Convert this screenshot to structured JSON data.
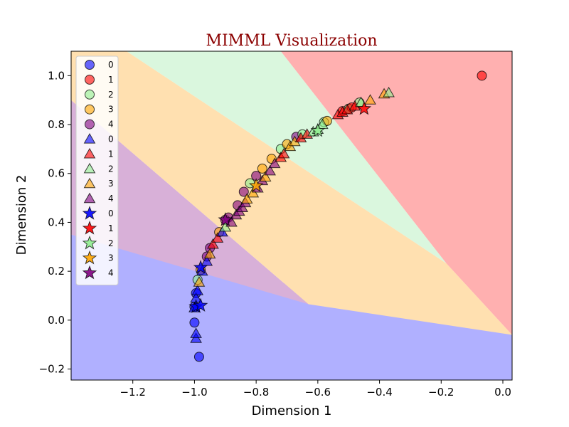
{
  "chart_data": {
    "type": "scatter",
    "title": "MIMML Visualization",
    "xlabel": "Dimension 1",
    "ylabel": "Dimension 2",
    "xlim": [
      -1.4,
      0.03
    ],
    "ylim": [
      -0.245,
      1.1
    ],
    "x_ticks": [
      "-1.2",
      "-1.0",
      "-0.8",
      "-0.6",
      "-0.4",
      "-0.2",
      "0.0"
    ],
    "y_ticks": [
      "-0.2",
      "0.0",
      "0.2",
      "0.4",
      "0.6",
      "0.8",
      "1.0"
    ],
    "grid": false,
    "legend_position": "top-left",
    "class_colors": {
      "0": "#0000ff",
      "1": "#ff0000",
      "2": "#90ee90",
      "3": "#ffa500",
      "4": "#800080"
    },
    "region_colors": {
      "0": "#b0b0ff",
      "1": "#ffb0b0",
      "2": "#daf7de",
      "3": "#ffe0b0",
      "4": "#d8b0d8"
    },
    "decision_regions": [
      {
        "class": "0",
        "polygon": [
          [
            -1.4,
            -0.245
          ],
          [
            0.03,
            -0.245
          ],
          [
            0.03,
            -0.06
          ],
          [
            -1.4,
            0.35
          ]
        ]
      },
      {
        "class": "4",
        "polygon": [
          [
            -1.4,
            0.35
          ],
          [
            -0.63,
            0.065
          ],
          [
            -1.4,
            0.9
          ]
        ]
      },
      {
        "class": "3",
        "polygon": [
          [
            -1.4,
            0.9
          ],
          [
            -1.4,
            1.1
          ],
          [
            -1.22,
            1.1
          ],
          [
            -0.183,
            0.232
          ],
          [
            0.03,
            -0.06
          ],
          [
            -0.63,
            0.065
          ]
        ]
      },
      {
        "class": "2",
        "polygon": [
          [
            -1.22,
            1.1
          ],
          [
            -0.72,
            1.1
          ],
          [
            -0.183,
            0.232
          ]
        ]
      },
      {
        "class": "1",
        "polygon": [
          [
            -0.72,
            1.1
          ],
          [
            0.03,
            1.1
          ],
          [
            0.03,
            -0.06
          ],
          [
            -0.183,
            0.232
          ]
        ]
      }
    ],
    "legend": [
      {
        "label": "0",
        "marker": "circle",
        "class": "0"
      },
      {
        "label": "1",
        "marker": "circle",
        "class": "1"
      },
      {
        "label": "2",
        "marker": "circle",
        "class": "2"
      },
      {
        "label": "3",
        "marker": "circle",
        "class": "3"
      },
      {
        "label": "4",
        "marker": "circle",
        "class": "4"
      },
      {
        "label": "0",
        "marker": "triangle",
        "class": "0"
      },
      {
        "label": "1",
        "marker": "triangle",
        "class": "1"
      },
      {
        "label": "2",
        "marker": "triangle",
        "class": "2"
      },
      {
        "label": "3",
        "marker": "triangle",
        "class": "3"
      },
      {
        "label": "4",
        "marker": "triangle",
        "class": "4"
      },
      {
        "label": "0",
        "marker": "star",
        "class": "0"
      },
      {
        "label": "1",
        "marker": "star",
        "class": "1"
      },
      {
        "label": "2",
        "marker": "star",
        "class": "2"
      },
      {
        "label": "3",
        "marker": "star",
        "class": "3"
      },
      {
        "label": "4",
        "marker": "star",
        "class": "4"
      }
    ],
    "series": [
      {
        "marker": "circle",
        "points": [
          {
            "x": -0.985,
            "y": -0.15,
            "c": "0"
          },
          {
            "x": -1.0,
            "y": -0.01,
            "c": "0"
          },
          {
            "x": -1.0,
            "y": 0.055,
            "c": "0"
          },
          {
            "x": -0.995,
            "y": 0.11,
            "c": "0"
          },
          {
            "x": -0.99,
            "y": 0.165,
            "c": "2"
          },
          {
            "x": -0.98,
            "y": 0.205,
            "c": "3"
          },
          {
            "x": -0.96,
            "y": 0.26,
            "c": "4"
          },
          {
            "x": -0.95,
            "y": 0.295,
            "c": "4"
          },
          {
            "x": -0.92,
            "y": 0.36,
            "c": "3"
          },
          {
            "x": -0.9,
            "y": 0.41,
            "c": "4"
          },
          {
            "x": -0.89,
            "y": 0.42,
            "c": "4"
          },
          {
            "x": -0.86,
            "y": 0.47,
            "c": "4"
          },
          {
            "x": -0.84,
            "y": 0.525,
            "c": "4"
          },
          {
            "x": -0.82,
            "y": 0.56,
            "c": "2"
          },
          {
            "x": -0.8,
            "y": 0.59,
            "c": "4"
          },
          {
            "x": -0.78,
            "y": 0.62,
            "c": "3"
          },
          {
            "x": -0.75,
            "y": 0.66,
            "c": "3"
          },
          {
            "x": -0.72,
            "y": 0.7,
            "c": "2"
          },
          {
            "x": -0.7,
            "y": 0.72,
            "c": "3"
          },
          {
            "x": -0.67,
            "y": 0.75,
            "c": "4"
          },
          {
            "x": -0.65,
            "y": 0.76,
            "c": "2"
          },
          {
            "x": -0.58,
            "y": 0.81,
            "c": "2"
          },
          {
            "x": -0.57,
            "y": 0.815,
            "c": "3"
          },
          {
            "x": -0.52,
            "y": 0.855,
            "c": "1"
          },
          {
            "x": -0.5,
            "y": 0.865,
            "c": "2"
          },
          {
            "x": -0.49,
            "y": 0.87,
            "c": "1"
          },
          {
            "x": -0.465,
            "y": 0.89,
            "c": "2"
          },
          {
            "x": -0.068,
            "y": 1.0,
            "c": "1"
          }
        ]
      },
      {
        "marker": "triangle",
        "points": [
          {
            "x": -0.995,
            "y": -0.075,
            "c": "0"
          },
          {
            "x": -0.995,
            "y": -0.055,
            "c": "0"
          },
          {
            "x": -1.0,
            "y": 0.05,
            "c": "0"
          },
          {
            "x": -0.995,
            "y": 0.09,
            "c": "0"
          },
          {
            "x": -0.99,
            "y": 0.12,
            "c": "0"
          },
          {
            "x": -0.985,
            "y": 0.155,
            "c": "3"
          },
          {
            "x": -0.975,
            "y": 0.2,
            "c": "0"
          },
          {
            "x": -0.96,
            "y": 0.24,
            "c": "0"
          },
          {
            "x": -0.95,
            "y": 0.27,
            "c": "3"
          },
          {
            "x": -0.94,
            "y": 0.31,
            "c": "1"
          },
          {
            "x": -0.925,
            "y": 0.335,
            "c": "1"
          },
          {
            "x": -0.91,
            "y": 0.36,
            "c": "0"
          },
          {
            "x": -0.9,
            "y": 0.38,
            "c": "2"
          },
          {
            "x": -0.88,
            "y": 0.4,
            "c": "4"
          },
          {
            "x": -0.865,
            "y": 0.43,
            "c": "4"
          },
          {
            "x": -0.855,
            "y": 0.445,
            "c": "4"
          },
          {
            "x": -0.845,
            "y": 0.46,
            "c": "4"
          },
          {
            "x": -0.835,
            "y": 0.48,
            "c": "4"
          },
          {
            "x": -0.83,
            "y": 0.495,
            "c": "3"
          },
          {
            "x": -0.81,
            "y": 0.52,
            "c": "3"
          },
          {
            "x": -0.795,
            "y": 0.54,
            "c": "4"
          },
          {
            "x": -0.78,
            "y": 0.57,
            "c": "4"
          },
          {
            "x": -0.77,
            "y": 0.585,
            "c": "3"
          },
          {
            "x": -0.755,
            "y": 0.61,
            "c": "4"
          },
          {
            "x": -0.74,
            "y": 0.64,
            "c": "4"
          },
          {
            "x": -0.72,
            "y": 0.665,
            "c": "1"
          },
          {
            "x": -0.71,
            "y": 0.68,
            "c": "1"
          },
          {
            "x": -0.69,
            "y": 0.71,
            "c": "3"
          },
          {
            "x": -0.675,
            "y": 0.73,
            "c": "3"
          },
          {
            "x": -0.655,
            "y": 0.745,
            "c": "1"
          },
          {
            "x": -0.635,
            "y": 0.76,
            "c": "1"
          },
          {
            "x": -0.615,
            "y": 0.77,
            "c": "2"
          },
          {
            "x": -0.6,
            "y": 0.78,
            "c": "2"
          },
          {
            "x": -0.585,
            "y": 0.8,
            "c": "2"
          },
          {
            "x": -0.535,
            "y": 0.84,
            "c": "1"
          },
          {
            "x": -0.52,
            "y": 0.85,
            "c": "1"
          },
          {
            "x": -0.505,
            "y": 0.86,
            "c": "1"
          },
          {
            "x": -0.48,
            "y": 0.875,
            "c": "1"
          },
          {
            "x": -0.46,
            "y": 0.89,
            "c": "2"
          },
          {
            "x": -0.43,
            "y": 0.9,
            "c": "3"
          },
          {
            "x": -0.385,
            "y": 0.925,
            "c": "3"
          },
          {
            "x": -0.37,
            "y": 0.93,
            "c": "2"
          }
        ]
      },
      {
        "marker": "star",
        "points": [
          {
            "x": -0.995,
            "y": 0.055,
            "c": "0"
          },
          {
            "x": -0.98,
            "y": 0.06,
            "c": "0"
          },
          {
            "x": -0.98,
            "y": 0.215,
            "c": "0"
          },
          {
            "x": -0.9,
            "y": 0.41,
            "c": "4"
          },
          {
            "x": -0.8,
            "y": 0.55,
            "c": "3"
          },
          {
            "x": -0.6,
            "y": 0.775,
            "c": "2"
          },
          {
            "x": -0.45,
            "y": 0.865,
            "c": "1"
          }
        ]
      }
    ]
  }
}
